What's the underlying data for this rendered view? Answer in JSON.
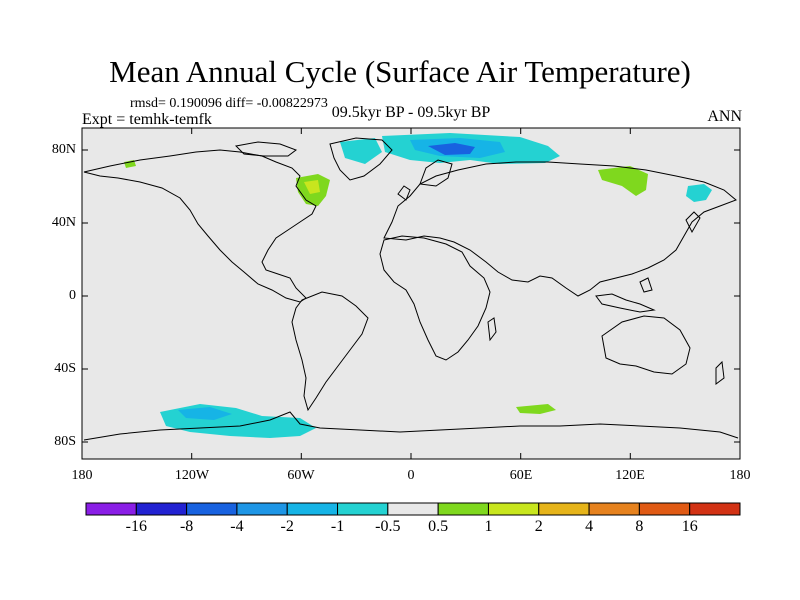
{
  "title": "Mean Annual Cycle (Surface Air Temperature)",
  "stats": "rmsd= 0.190096 diff= -0.00822973",
  "experiment": "Expt = temhk-temfk",
  "period": "09.5kyr BP - 09.5kyr BP",
  "season": "ANN",
  "lat_labels": [
    "80N",
    "40N",
    "0",
    "40S",
    "80S"
  ],
  "lon_labels": [
    "180",
    "120W",
    "60W",
    "0",
    "60E",
    "120E",
    "180"
  ],
  "colorbar": {
    "labels": [
      "-16",
      "-8",
      "-4",
      "-2",
      "-1",
      "-0.5",
      "0.5",
      "1",
      "2",
      "4",
      "8",
      "16"
    ],
    "colors": [
      "#8a1ee6",
      "#2222d2",
      "#1862e0",
      "#1e96e6",
      "#16b4e6",
      "#24d2d2",
      "#e8e8e8",
      "#7fd81e",
      "#c8e61e",
      "#e6b41a",
      "#e6821e",
      "#e05a14",
      "#d23214"
    ]
  },
  "colors": {
    "ocean_neutral": "#e8e8e8",
    "cyan": "#24d2d2",
    "light_blue": "#16b4e6",
    "blue": "#1862e0",
    "green": "#7fd81e",
    "yellow_green": "#c8e61e"
  }
}
